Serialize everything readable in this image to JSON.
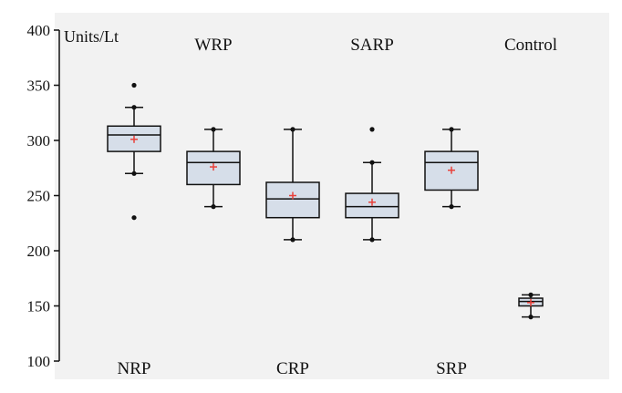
{
  "chart_data": {
    "type": "boxplot",
    "title": "",
    "xlabel": "",
    "ylabel": "",
    "unit_label": "Units/Lt",
    "ylim": [
      100,
      400
    ],
    "yticks": [
      100,
      150,
      200,
      250,
      300,
      350,
      400
    ],
    "ytick_labels": [
      "100",
      "150",
      "200",
      "250",
      "300",
      "350",
      "400"
    ],
    "grid": false,
    "colors": {
      "plot_bg": "#f2f2f2",
      "box_fill": "#d6dee9",
      "box_stroke": "#111111",
      "mean_marker": "#e8413a",
      "outlier": "#111111"
    },
    "categories": [
      {
        "label": "NRP",
        "label_position": "bottom",
        "whisker_low": 270,
        "q1": 290,
        "median": 305,
        "q3": 313,
        "whisker_high": 330,
        "mean": 301,
        "outliers": [
          350,
          230
        ]
      },
      {
        "label": "WRP",
        "label_position": "top",
        "whisker_low": 240,
        "q1": 260,
        "median": 280,
        "q3": 290,
        "whisker_high": 310,
        "mean": 276,
        "outliers": []
      },
      {
        "label": "CRP",
        "label_position": "bottom",
        "whisker_low": 210,
        "q1": 230,
        "median": 247,
        "q3": 262,
        "whisker_high": 310,
        "mean": 250,
        "outliers": []
      },
      {
        "label": "SARP",
        "label_position": "top",
        "whisker_low": 210,
        "q1": 230,
        "median": 240,
        "q3": 252,
        "whisker_high": 280,
        "mean": 244,
        "outliers": [
          310
        ]
      },
      {
        "label": "SRP",
        "label_position": "bottom",
        "whisker_low": 240,
        "q1": 255,
        "median": 280,
        "q3": 290,
        "whisker_high": 310,
        "mean": 273,
        "outliers": []
      },
      {
        "label": "Control",
        "label_position": "top",
        "whisker_low": 140,
        "q1": 150,
        "median": 154,
        "q3": 157,
        "whisker_high": 160,
        "mean": 153,
        "outliers": []
      }
    ]
  }
}
